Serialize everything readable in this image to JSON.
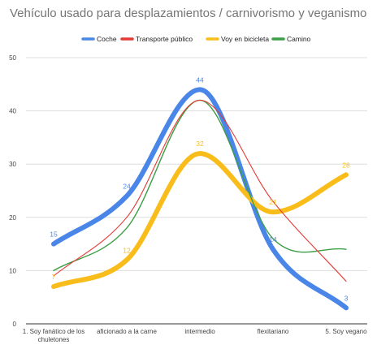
{
  "chart_data": {
    "type": "line",
    "title": "Vehículo usado para desplazamientos / carnivorismo y veganismo",
    "categories": [
      "1. Soy fanático de los chuletones",
      "aficionado a la carne",
      "intermedio",
      "flexitariano",
      "5. Soy vegano"
    ],
    "category_lines": [
      [
        "1. Soy fanático de los",
        "chuletones"
      ],
      [
        "aficionado a la carne"
      ],
      [
        "intermedio"
      ],
      [
        "flexitariano"
      ],
      [
        "5. Soy vegano"
      ]
    ],
    "series": [
      {
        "name": "Coche",
        "color": "#4a86e8",
        "values": [
          15,
          24,
          44,
          14,
          3
        ],
        "labels": true
      },
      {
        "name": "Transporte público",
        "color": "#e53935",
        "values": [
          9,
          20,
          42,
          23,
          8
        ],
        "labels": false
      },
      {
        "name": "Voy en bicicleta",
        "color": "#f9bd1b",
        "values": [
          7,
          12,
          32,
          21,
          28
        ],
        "labels": true
      },
      {
        "name": "Camino",
        "color": "#3c9e46",
        "values": [
          10,
          18,
          42,
          16,
          14
        ],
        "labels": false
      }
    ],
    "ylim": [
      0,
      50
    ],
    "yticks": [
      0,
      10,
      20,
      30,
      40,
      50
    ],
    "grid": true,
    "legend": "top"
  }
}
